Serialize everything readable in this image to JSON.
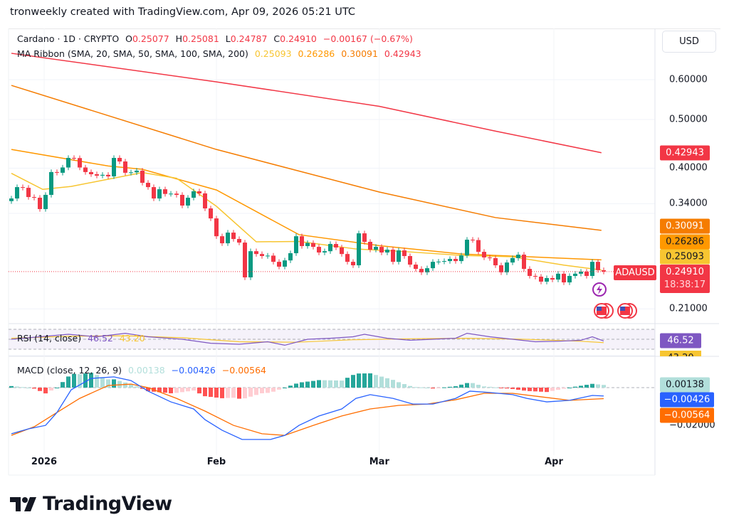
{
  "attribution": "tronweekly created with TradingView.com, Apr 09, 2026 05:21 UTC",
  "symbol_legend": {
    "name": "Cardano · 1D · CRYPTO",
    "o_label": "O",
    "o": "0.25077",
    "h_label": "H",
    "h": "0.25081",
    "l_label": "L",
    "l": "0.24787",
    "c_label": "C",
    "c": "0.24910",
    "change": "−0.00167 (−0.67%)"
  },
  "ma_legend": {
    "name": "MA Ribbon (SMA, 20, SMA, 50, SMA, 100, SMA, 200)",
    "v20": "0.25093",
    "v50": "0.26286",
    "v100": "0.30091",
    "v200": "0.42943"
  },
  "rsi_legend": {
    "name": "RSI (14, close)",
    "rsi": "46.52",
    "ma": "43.20"
  },
  "macd_legend": {
    "name": "MACD (close, 12, 26, 9)",
    "hist": "0.00138",
    "macd": "−0.00426",
    "signal": "−0.00564"
  },
  "currency_button": "USD",
  "price_axis": [
    "0.60000",
    "0.50000",
    "0.40000",
    "0.34000",
    "0.21000"
  ],
  "macd_axis": [
    "−0.02000"
  ],
  "tags": {
    "ma200": "0.42943",
    "ma100": "0.30091",
    "ma50": "0.26286",
    "ma20": "0.25093",
    "symbol": "ADAUSD",
    "last": "0.24910",
    "countdown": "18:38:17",
    "rsi": "46.52",
    "rsi_ma": "43.20",
    "hist": "0.00138",
    "macd": "−0.00426",
    "signal": "−0.00564"
  },
  "time_axis": [
    {
      "label": "2026",
      "day": 5.75
    },
    {
      "label": "Feb",
      "day": 36
    },
    {
      "label": "Mar",
      "day": 64.6
    },
    {
      "label": "Apr",
      "day": 95.25
    }
  ],
  "logo_text": "TradingView",
  "colors": {
    "up": "#089981",
    "down": "#f23645",
    "ma20": "#f7c531",
    "ma50": "#ff9800",
    "ma100": "#f57c00",
    "ma200": "#f23645",
    "rsi": "#7e57c2",
    "macd": "#2962ff",
    "signal": "#ff6d00"
  },
  "chart_data": {
    "type": "candlestick",
    "symbol": "ADAUSD",
    "interval": "1D",
    "scale": "log",
    "first_open": 0.344,
    "closes": [
      0.3482,
      0.3668,
      0.3656,
      0.3505,
      0.3494,
      0.3317,
      0.354,
      0.393,
      0.3917,
      0.4013,
      0.4193,
      0.419,
      0.4013,
      0.393,
      0.3891,
      0.3866,
      0.388,
      0.3853,
      0.4193,
      0.4125,
      0.3917,
      0.3925,
      0.3955,
      0.3741,
      0.3668,
      0.3482,
      0.3632,
      0.3555,
      0.356,
      0.354,
      0.3371,
      0.3494,
      0.3598,
      0.3564,
      0.3327,
      0.3178,
      0.2929,
      0.2836,
      0.2978,
      0.2892,
      0.2845,
      0.2426,
      0.2735,
      0.27,
      0.2675,
      0.268,
      0.2605,
      0.2548,
      0.2622,
      0.271,
      0.2929,
      0.28,
      0.284,
      0.279,
      0.2719,
      0.2735,
      0.2827,
      0.2782,
      0.27,
      0.2605,
      0.2564,
      0.2968,
      0.2855,
      0.2754,
      0.279,
      0.2719,
      0.2754,
      0.2605,
      0.2745,
      0.2675,
      0.2572,
      0.2522,
      0.2483,
      0.253,
      0.2605,
      0.2608,
      0.2614,
      0.264,
      0.2614,
      0.2683,
      0.2883,
      0.2878,
      0.2727,
      0.2658,
      0.265,
      0.2564,
      0.2483,
      0.2597,
      0.265,
      0.2692,
      0.2522,
      0.2442,
      0.2434,
      0.2379,
      0.2418,
      0.2402,
      0.2467,
      0.2371,
      0.2442,
      0.2467,
      0.2491,
      0.2442,
      0.2605,
      0.25077,
      0.2491
    ],
    "ma": {
      "sma200": [
        [
          0,
          0.677
        ],
        [
          36,
          0.594
        ],
        [
          64.6,
          0.531
        ],
        [
          85,
          0.474
        ],
        [
          103.6,
          0.4294
        ]
      ],
      "sma100": [
        [
          0,
          0.5845
        ],
        [
          36,
          0.4358
        ],
        [
          64.6,
          0.3586
        ],
        [
          85,
          0.319
        ],
        [
          103.6,
          0.3009
        ]
      ],
      "sma50": [
        [
          0,
          0.4358
        ],
        [
          17,
          0.404
        ],
        [
          23,
          0.398
        ],
        [
          36,
          0.362
        ],
        [
          50.5,
          0.295
        ],
        [
          64.6,
          0.2806
        ],
        [
          79,
          0.27
        ],
        [
          103.6,
          0.2629
        ]
      ],
      "sma20": [
        [
          0,
          0.3907
        ],
        [
          5.5,
          0.363
        ],
        [
          10.5,
          0.368
        ],
        [
          23,
          0.392
        ],
        [
          29,
          0.382
        ],
        [
          36,
          0.336
        ],
        [
          43,
          0.2855
        ],
        [
          50.5,
          0.286
        ],
        [
          60.5,
          0.2763
        ],
        [
          68,
          0.2735
        ],
        [
          79,
          0.2683
        ],
        [
          88,
          0.2666
        ],
        [
          97,
          0.2566
        ],
        [
          103.6,
          0.2509
        ]
      ]
    },
    "rsi": {
      "series": [
        [
          0,
          50
        ],
        [
          5,
          55
        ],
        [
          10,
          60
        ],
        [
          15,
          55
        ],
        [
          20,
          62
        ],
        [
          24,
          55
        ],
        [
          30,
          50
        ],
        [
          35,
          42
        ],
        [
          40,
          40
        ],
        [
          45,
          45
        ],
        [
          48,
          38
        ],
        [
          52,
          50
        ],
        [
          56,
          52
        ],
        [
          60,
          55
        ],
        [
          62,
          60
        ],
        [
          66,
          52
        ],
        [
          70,
          48
        ],
        [
          74,
          50
        ],
        [
          78,
          52
        ],
        [
          80,
          62
        ],
        [
          84,
          55
        ],
        [
          88,
          50
        ],
        [
          92,
          45
        ],
        [
          96,
          46
        ],
        [
          100,
          48
        ],
        [
          102,
          55
        ],
        [
          104,
          46.52
        ]
      ],
      "ma": [
        [
          0,
          52
        ],
        [
          10,
          56
        ],
        [
          20,
          57
        ],
        [
          30,
          53
        ],
        [
          40,
          45
        ],
        [
          50,
          44
        ],
        [
          60,
          49
        ],
        [
          70,
          51
        ],
        [
          80,
          52
        ],
        [
          90,
          50
        ],
        [
          100,
          46
        ],
        [
          104,
          43.2
        ]
      ],
      "bands": [
        70,
        50,
        30
      ]
    },
    "macd": {
      "macd": [
        [
          0,
          -0.0236
        ],
        [
          3,
          -0.0211
        ],
        [
          6,
          -0.0193
        ],
        [
          8,
          -0.0127
        ],
        [
          10.5,
          -0.0011
        ],
        [
          14,
          0.0047
        ],
        [
          18,
          0.0055
        ],
        [
          21,
          0.0036
        ],
        [
          24,
          -0.0018
        ],
        [
          28,
          -0.0073
        ],
        [
          32,
          -0.0109
        ],
        [
          34,
          -0.0164
        ],
        [
          37,
          -0.0218
        ],
        [
          40.5,
          -0.0265
        ],
        [
          45.5,
          -0.0265
        ],
        [
          48,
          -0.0244
        ],
        [
          50.5,
          -0.0193
        ],
        [
          54,
          -0.0145
        ],
        [
          58,
          -0.0109
        ],
        [
          60.5,
          -0.0055
        ],
        [
          63,
          -0.0036
        ],
        [
          67,
          -0.0055
        ],
        [
          70.5,
          -0.0084
        ],
        [
          74,
          -0.0084
        ],
        [
          78,
          -0.0055
        ],
        [
          80.5,
          -0.0018
        ],
        [
          84,
          -0.0025
        ],
        [
          88,
          -0.0036
        ],
        [
          90.5,
          -0.0055
        ],
        [
          94,
          -0.0073
        ],
        [
          98,
          -0.0065
        ],
        [
          102,
          -0.004
        ],
        [
          104,
          -0.00426
        ]
      ],
      "signal": [
        [
          0,
          -0.0244
        ],
        [
          4,
          -0.02
        ],
        [
          8,
          -0.0127
        ],
        [
          12,
          -0.0055
        ],
        [
          17,
          0.0011
        ],
        [
          21,
          0.0018
        ],
        [
          24,
          0
        ],
        [
          29,
          -0.0055
        ],
        [
          34,
          -0.012
        ],
        [
          39,
          -0.0193
        ],
        [
          44,
          -0.0236
        ],
        [
          48,
          -0.0244
        ],
        [
          53,
          -0.0193
        ],
        [
          58,
          -0.0145
        ],
        [
          63,
          -0.0109
        ],
        [
          68,
          -0.0091
        ],
        [
          73,
          -0.0084
        ],
        [
          78,
          -0.0062
        ],
        [
          83,
          -0.0029
        ],
        [
          88,
          -0.0029
        ],
        [
          93,
          -0.0047
        ],
        [
          98,
          -0.0065
        ],
        [
          104,
          -0.00564
        ]
      ]
    }
  }
}
